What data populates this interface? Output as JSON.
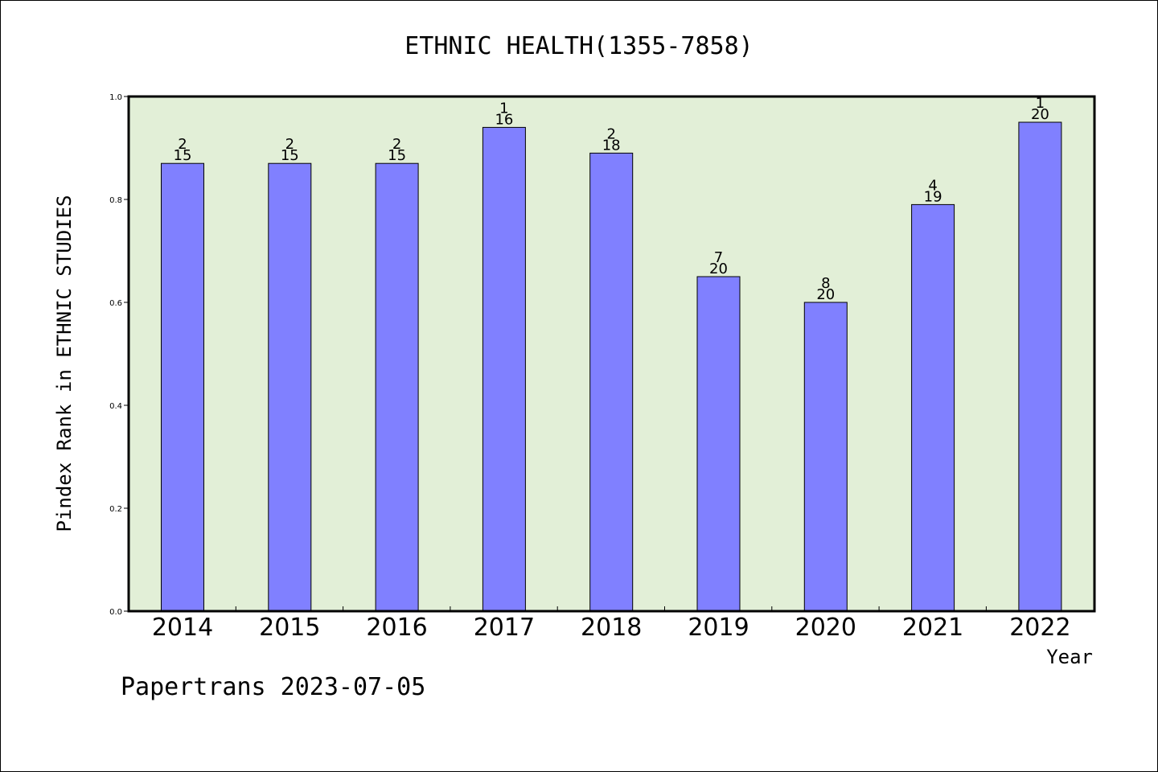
{
  "chart_data": {
    "type": "bar",
    "title": "ETHNIC HEALTH(1355-7858)",
    "xlabel": "Year",
    "ylabel": "Pindex Rank in ETHNIC STUDIES",
    "footer": "Papertrans 2023-07-05",
    "categories": [
      "2014",
      "2015",
      "2016",
      "2017",
      "2018",
      "2019",
      "2020",
      "2021",
      "2022"
    ],
    "values": [
      0.87,
      0.87,
      0.87,
      0.94,
      0.89,
      0.65,
      0.6,
      0.79,
      0.95
    ],
    "label_top": [
      "2",
      "2",
      "2",
      "1",
      "2",
      "7",
      "8",
      "4",
      "1"
    ],
    "label_bottom": [
      "15",
      "15",
      "15",
      "16",
      "18",
      "20",
      "20",
      "19",
      "20"
    ],
    "ylim": [
      0,
      1.0
    ],
    "yticks": [
      0.0,
      0.2,
      0.4,
      0.6,
      0.8,
      1.0
    ],
    "ytick_labels": [
      "0.0",
      "0.2",
      "0.4",
      "0.6",
      "0.8",
      "1.0"
    ],
    "grid": false,
    "colors": {
      "bar_fill": "#8080ff",
      "bar_stroke": "#000000",
      "plot_background": "#e2efd7",
      "axis": "#000000"
    }
  }
}
